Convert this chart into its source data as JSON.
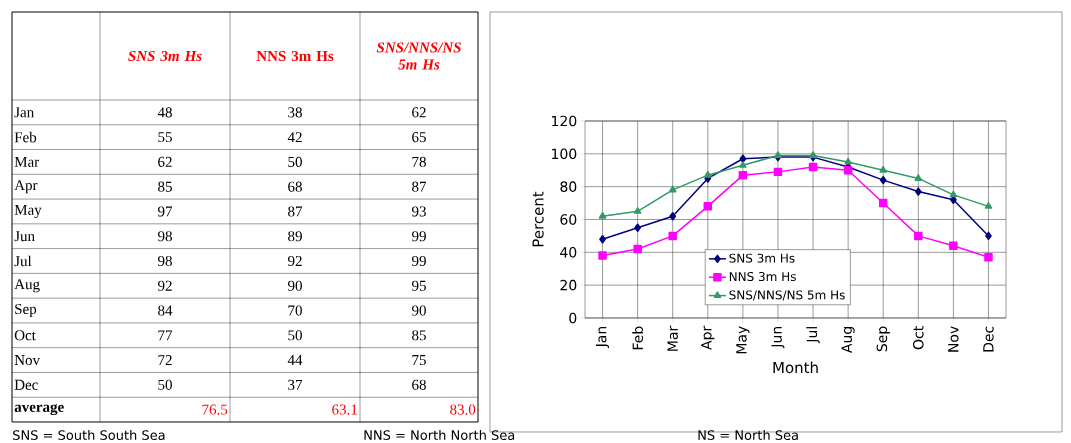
{
  "chart_data": [
    {
      "type": "other",
      "categories": [
        null,
        "SNS 3m Hs",
        "NNS 3m Hs",
        "SNS/NNS/NS 5m Hs"
      ],
      "y_categories": [
        "Jan",
        "Feb",
        "Mar",
        "Apr",
        "May",
        "Jun",
        "Jul",
        "Aug",
        "Sep",
        "Oct",
        "Nov",
        "Dec",
        "average"
      ],
      "cell_labels": [
        [
          "48",
          "38",
          "62"
        ],
        [
          "55",
          "42",
          "65"
        ],
        [
          "62",
          "50",
          "78"
        ],
        [
          "85",
          "68",
          "87"
        ],
        [
          "97",
          "87",
          "93"
        ],
        [
          "98",
          "89",
          "99"
        ],
        [
          "98",
          "92",
          "99"
        ],
        [
          "92",
          "90",
          "95"
        ],
        [
          "84",
          "70",
          "90"
        ],
        [
          "77",
          "50",
          "85"
        ],
        [
          "72",
          "44",
          "75"
        ],
        [
          "50",
          "37",
          "68"
        ],
        [
          "76.5",
          "63.1",
          "83.0"
        ]
      ],
      "annotations": [
        "SNS = South South Sea",
        "NNS = North North Sea",
        "NS = North Sea"
      ]
    },
    {
      "type": "line",
      "xlabel": "Month",
      "ylabel": "Percent",
      "categories": [
        "Jan",
        "Feb",
        "Mar",
        "Apr",
        "May",
        "Jun",
        "Jul",
        "Aug",
        "Sep",
        "Oct",
        "Nov",
        "Dec"
      ],
      "series": [
        {
          "name": "SNS 3m Hs",
          "color": "#000080",
          "marker": "diamond",
          "values": [
            48,
            55,
            62,
            85,
            97,
            98,
            98,
            92,
            84,
            77,
            72,
            50
          ]
        },
        {
          "name": "NNS 3m Hs",
          "color": "#ff00ff",
          "marker": "square",
          "values": [
            38,
            42,
            50,
            68,
            87,
            89,
            92,
            90,
            70,
            50,
            44,
            37
          ]
        },
        {
          "name": "SNS/NNS/NS 5m Hs",
          "color": "#339966",
          "marker": "triangle",
          "values": [
            62,
            65,
            78,
            87,
            93,
            99,
            99,
            95,
            90,
            85,
            75,
            68
          ]
        }
      ],
      "ylim": [
        0,
        120
      ],
      "yticks": [
        0,
        20,
        40,
        60,
        80,
        100,
        120
      ],
      "grid": true,
      "legend": "bottom",
      "line_style": "solid"
    }
  ]
}
